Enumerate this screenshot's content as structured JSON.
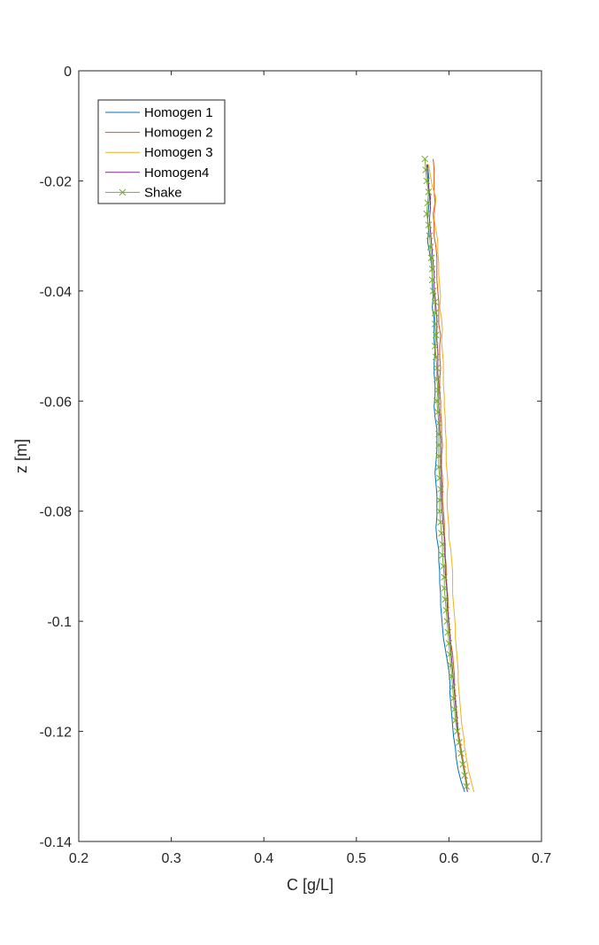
{
  "chart_data": {
    "type": "line",
    "xlabel": "C [g/L]",
    "ylabel": "z [m]",
    "xlim": [
      0.2,
      0.7
    ],
    "ylim": [
      -0.14,
      0
    ],
    "xticks": [
      0.2,
      0.3,
      0.4,
      0.5,
      0.6,
      0.7
    ],
    "xtick_labels": [
      "0.2",
      "0.3",
      "0.4",
      "0.5",
      "0.6",
      "0.7"
    ],
    "yticks": [
      0,
      -0.02,
      -0.04,
      -0.06,
      -0.08,
      -0.1,
      -0.12,
      -0.14
    ],
    "ytick_labels": [
      "0",
      "-0.02",
      "-0.04",
      "-0.06",
      "-0.08",
      "-0.1",
      "-0.12",
      "-0.14"
    ],
    "grid": false,
    "legend_position": "top-left",
    "series": [
      {
        "name": "Homogen 1",
        "color": "#0072BD",
        "marker": "none",
        "points": [
          [
            0.577,
            -0.017
          ],
          [
            0.578,
            -0.019
          ],
          [
            0.578,
            -0.021
          ],
          [
            0.579,
            -0.023
          ],
          [
            0.578,
            -0.025
          ],
          [
            0.577,
            -0.027
          ],
          [
            0.578,
            -0.029
          ],
          [
            0.577,
            -0.031
          ],
          [
            0.579,
            -0.033
          ],
          [
            0.581,
            -0.035
          ],
          [
            0.582,
            -0.037
          ],
          [
            0.582,
            -0.039
          ],
          [
            0.583,
            -0.041
          ],
          [
            0.582,
            -0.043
          ],
          [
            0.584,
            -0.045
          ],
          [
            0.584,
            -0.047
          ],
          [
            0.584,
            -0.049
          ],
          [
            0.585,
            -0.051
          ],
          [
            0.584,
            -0.053
          ],
          [
            0.584,
            -0.055
          ],
          [
            0.585,
            -0.057
          ],
          [
            0.585,
            -0.059
          ],
          [
            0.584,
            -0.061
          ],
          [
            0.585,
            -0.063
          ],
          [
            0.587,
            -0.065
          ],
          [
            0.587,
            -0.067
          ],
          [
            0.587,
            -0.069
          ],
          [
            0.586,
            -0.071
          ],
          [
            0.585,
            -0.073
          ],
          [
            0.586,
            -0.075
          ],
          [
            0.587,
            -0.077
          ],
          [
            0.587,
            -0.079
          ],
          [
            0.587,
            -0.081
          ],
          [
            0.586,
            -0.083
          ],
          [
            0.587,
            -0.085
          ],
          [
            0.589,
            -0.087
          ],
          [
            0.589,
            -0.089
          ],
          [
            0.59,
            -0.091
          ],
          [
            0.59,
            -0.093
          ],
          [
            0.591,
            -0.095
          ],
          [
            0.591,
            -0.097
          ],
          [
            0.592,
            -0.099
          ],
          [
            0.593,
            -0.101
          ],
          [
            0.594,
            -0.103
          ],
          [
            0.596,
            -0.105
          ],
          [
            0.598,
            -0.107
          ],
          [
            0.6,
            -0.109
          ],
          [
            0.601,
            -0.111
          ],
          [
            0.601,
            -0.113
          ],
          [
            0.602,
            -0.115
          ],
          [
            0.603,
            -0.117
          ],
          [
            0.604,
            -0.119
          ],
          [
            0.605,
            -0.121
          ],
          [
            0.607,
            -0.123
          ],
          [
            0.608,
            -0.125
          ],
          [
            0.61,
            -0.127
          ],
          [
            0.613,
            -0.129
          ],
          [
            0.617,
            -0.131
          ]
        ]
      },
      {
        "name": "Homogen 2",
        "color": "#D95319",
        "marker": "none",
        "points": [
          [
            0.583,
            -0.016
          ],
          [
            0.584,
            -0.018
          ],
          [
            0.584,
            -0.02
          ],
          [
            0.584,
            -0.022
          ],
          [
            0.585,
            -0.024
          ],
          [
            0.583,
            -0.026
          ],
          [
            0.584,
            -0.028
          ],
          [
            0.584,
            -0.03
          ],
          [
            0.586,
            -0.032
          ],
          [
            0.587,
            -0.034
          ],
          [
            0.587,
            -0.036
          ],
          [
            0.587,
            -0.038
          ],
          [
            0.588,
            -0.04
          ],
          [
            0.589,
            -0.042
          ],
          [
            0.589,
            -0.044
          ],
          [
            0.589,
            -0.046
          ],
          [
            0.591,
            -0.048
          ],
          [
            0.59,
            -0.05
          ],
          [
            0.59,
            -0.052
          ],
          [
            0.591,
            -0.054
          ],
          [
            0.59,
            -0.056
          ],
          [
            0.59,
            -0.058
          ],
          [
            0.591,
            -0.06
          ],
          [
            0.591,
            -0.062
          ],
          [
            0.592,
            -0.064
          ],
          [
            0.592,
            -0.066
          ],
          [
            0.593,
            -0.068
          ],
          [
            0.592,
            -0.07
          ],
          [
            0.592,
            -0.072
          ],
          [
            0.593,
            -0.074
          ],
          [
            0.593,
            -0.076
          ],
          [
            0.593,
            -0.078
          ],
          [
            0.594,
            -0.08
          ],
          [
            0.595,
            -0.082
          ],
          [
            0.595,
            -0.084
          ],
          [
            0.596,
            -0.086
          ],
          [
            0.596,
            -0.088
          ],
          [
            0.597,
            -0.09
          ],
          [
            0.597,
            -0.092
          ],
          [
            0.598,
            -0.094
          ],
          [
            0.599,
            -0.096
          ],
          [
            0.599,
            -0.098
          ],
          [
            0.6,
            -0.1
          ],
          [
            0.601,
            -0.102
          ],
          [
            0.602,
            -0.104
          ],
          [
            0.604,
            -0.106
          ],
          [
            0.605,
            -0.108
          ],
          [
            0.606,
            -0.11
          ],
          [
            0.606,
            -0.112
          ],
          [
            0.607,
            -0.114
          ],
          [
            0.608,
            -0.116
          ],
          [
            0.609,
            -0.118
          ],
          [
            0.61,
            -0.12
          ],
          [
            0.612,
            -0.122
          ],
          [
            0.614,
            -0.124
          ],
          [
            0.616,
            -0.126
          ],
          [
            0.618,
            -0.128
          ],
          [
            0.62,
            -0.13
          ]
        ]
      },
      {
        "name": "Homogen 3",
        "color": "#EDB120",
        "marker": "none",
        "points": [
          [
            0.578,
            -0.017
          ],
          [
            0.58,
            -0.019
          ],
          [
            0.582,
            -0.021
          ],
          [
            0.586,
            -0.023
          ],
          [
            0.585,
            -0.025
          ],
          [
            0.584,
            -0.027
          ],
          [
            0.586,
            -0.029
          ],
          [
            0.588,
            -0.031
          ],
          [
            0.588,
            -0.033
          ],
          [
            0.589,
            -0.035
          ],
          [
            0.589,
            -0.037
          ],
          [
            0.59,
            -0.039
          ],
          [
            0.591,
            -0.041
          ],
          [
            0.59,
            -0.043
          ],
          [
            0.592,
            -0.045
          ],
          [
            0.593,
            -0.047
          ],
          [
            0.592,
            -0.049
          ],
          [
            0.593,
            -0.051
          ],
          [
            0.594,
            -0.053
          ],
          [
            0.594,
            -0.055
          ],
          [
            0.594,
            -0.057
          ],
          [
            0.595,
            -0.059
          ],
          [
            0.595,
            -0.061
          ],
          [
            0.596,
            -0.063
          ],
          [
            0.596,
            -0.065
          ],
          [
            0.597,
            -0.067
          ],
          [
            0.597,
            -0.069
          ],
          [
            0.597,
            -0.071
          ],
          [
            0.598,
            -0.073
          ],
          [
            0.599,
            -0.075
          ],
          [
            0.598,
            -0.077
          ],
          [
            0.598,
            -0.079
          ],
          [
            0.599,
            -0.081
          ],
          [
            0.6,
            -0.083
          ],
          [
            0.6,
            -0.085
          ],
          [
            0.602,
            -0.087
          ],
          [
            0.603,
            -0.089
          ],
          [
            0.604,
            -0.091
          ],
          [
            0.604,
            -0.093
          ],
          [
            0.604,
            -0.095
          ],
          [
            0.605,
            -0.097
          ],
          [
            0.606,
            -0.099
          ],
          [
            0.607,
            -0.101
          ],
          [
            0.607,
            -0.103
          ],
          [
            0.608,
            -0.105
          ],
          [
            0.609,
            -0.107
          ],
          [
            0.61,
            -0.109
          ],
          [
            0.61,
            -0.111
          ],
          [
            0.611,
            -0.113
          ],
          [
            0.612,
            -0.115
          ],
          [
            0.613,
            -0.117
          ],
          [
            0.614,
            -0.119
          ],
          [
            0.616,
            -0.121
          ],
          [
            0.617,
            -0.123
          ],
          [
            0.619,
            -0.125
          ],
          [
            0.621,
            -0.127
          ],
          [
            0.624,
            -0.129
          ],
          [
            0.627,
            -0.131
          ]
        ]
      },
      {
        "name": "Homogen4",
        "color": "#7E2F8E",
        "marker": "none",
        "points": [
          [
            0.576,
            -0.017
          ],
          [
            0.577,
            -0.019
          ],
          [
            0.578,
            -0.021
          ],
          [
            0.58,
            -0.023
          ],
          [
            0.58,
            -0.025
          ],
          [
            0.579,
            -0.027
          ],
          [
            0.58,
            -0.029
          ],
          [
            0.581,
            -0.031
          ],
          [
            0.582,
            -0.033
          ],
          [
            0.583,
            -0.035
          ],
          [
            0.584,
            -0.037
          ],
          [
            0.584,
            -0.039
          ],
          [
            0.585,
            -0.041
          ],
          [
            0.586,
            -0.043
          ],
          [
            0.587,
            -0.045
          ],
          [
            0.587,
            -0.047
          ],
          [
            0.587,
            -0.049
          ],
          [
            0.588,
            -0.051
          ],
          [
            0.588,
            -0.053
          ],
          [
            0.588,
            -0.055
          ],
          [
            0.589,
            -0.057
          ],
          [
            0.589,
            -0.059
          ],
          [
            0.589,
            -0.061
          ],
          [
            0.59,
            -0.063
          ],
          [
            0.59,
            -0.065
          ],
          [
            0.591,
            -0.067
          ],
          [
            0.591,
            -0.069
          ],
          [
            0.591,
            -0.071
          ],
          [
            0.591,
            -0.073
          ],
          [
            0.592,
            -0.075
          ],
          [
            0.592,
            -0.077
          ],
          [
            0.592,
            -0.079
          ],
          [
            0.593,
            -0.081
          ],
          [
            0.594,
            -0.083
          ],
          [
            0.595,
            -0.085
          ],
          [
            0.595,
            -0.087
          ],
          [
            0.596,
            -0.089
          ],
          [
            0.596,
            -0.091
          ],
          [
            0.597,
            -0.093
          ],
          [
            0.598,
            -0.095
          ],
          [
            0.598,
            -0.097
          ],
          [
            0.599,
            -0.099
          ],
          [
            0.6,
            -0.101
          ],
          [
            0.601,
            -0.103
          ],
          [
            0.602,
            -0.105
          ],
          [
            0.603,
            -0.107
          ],
          [
            0.604,
            -0.109
          ],
          [
            0.605,
            -0.111
          ],
          [
            0.606,
            -0.113
          ],
          [
            0.607,
            -0.115
          ],
          [
            0.608,
            -0.117
          ],
          [
            0.609,
            -0.119
          ],
          [
            0.61,
            -0.121
          ],
          [
            0.612,
            -0.123
          ],
          [
            0.614,
            -0.125
          ],
          [
            0.616,
            -0.127
          ],
          [
            0.618,
            -0.129
          ],
          [
            0.62,
            -0.131
          ]
        ]
      },
      {
        "name": "Shake",
        "color": "#77AC30",
        "marker": "x",
        "points": [
          [
            0.574,
            -0.016
          ],
          [
            0.575,
            -0.018
          ],
          [
            0.576,
            -0.02
          ],
          [
            0.578,
            -0.022
          ],
          [
            0.577,
            -0.024
          ],
          [
            0.576,
            -0.026
          ],
          [
            0.578,
            -0.028
          ],
          [
            0.579,
            -0.03
          ],
          [
            0.58,
            -0.032
          ],
          [
            0.581,
            -0.034
          ],
          [
            0.582,
            -0.036
          ],
          [
            0.582,
            -0.038
          ],
          [
            0.583,
            -0.04
          ],
          [
            0.585,
            -0.042
          ],
          [
            0.585,
            -0.044
          ],
          [
            0.585,
            -0.046
          ],
          [
            0.586,
            -0.048
          ],
          [
            0.585,
            -0.05
          ],
          [
            0.586,
            -0.052
          ],
          [
            0.587,
            -0.054
          ],
          [
            0.587,
            -0.056
          ],
          [
            0.588,
            -0.058
          ],
          [
            0.587,
            -0.06
          ],
          [
            0.588,
            -0.062
          ],
          [
            0.589,
            -0.064
          ],
          [
            0.589,
            -0.066
          ],
          [
            0.589,
            -0.068
          ],
          [
            0.589,
            -0.07
          ],
          [
            0.589,
            -0.072
          ],
          [
            0.59,
            -0.074
          ],
          [
            0.591,
            -0.076
          ],
          [
            0.59,
            -0.078
          ],
          [
            0.59,
            -0.08
          ],
          [
            0.591,
            -0.082
          ],
          [
            0.592,
            -0.084
          ],
          [
            0.593,
            -0.086
          ],
          [
            0.593,
            -0.088
          ],
          [
            0.594,
            -0.09
          ],
          [
            0.595,
            -0.092
          ],
          [
            0.595,
            -0.094
          ],
          [
            0.596,
            -0.096
          ],
          [
            0.597,
            -0.098
          ],
          [
            0.598,
            -0.1
          ],
          [
            0.599,
            -0.102
          ],
          [
            0.6,
            -0.104
          ],
          [
            0.601,
            -0.106
          ],
          [
            0.602,
            -0.108
          ],
          [
            0.603,
            -0.11
          ],
          [
            0.604,
            -0.112
          ],
          [
            0.605,
            -0.114
          ],
          [
            0.606,
            -0.116
          ],
          [
            0.607,
            -0.118
          ],
          [
            0.609,
            -0.12
          ],
          [
            0.611,
            -0.122
          ],
          [
            0.613,
            -0.124
          ],
          [
            0.615,
            -0.126
          ],
          [
            0.617,
            -0.128
          ],
          [
            0.619,
            -0.13
          ]
        ]
      }
    ]
  }
}
